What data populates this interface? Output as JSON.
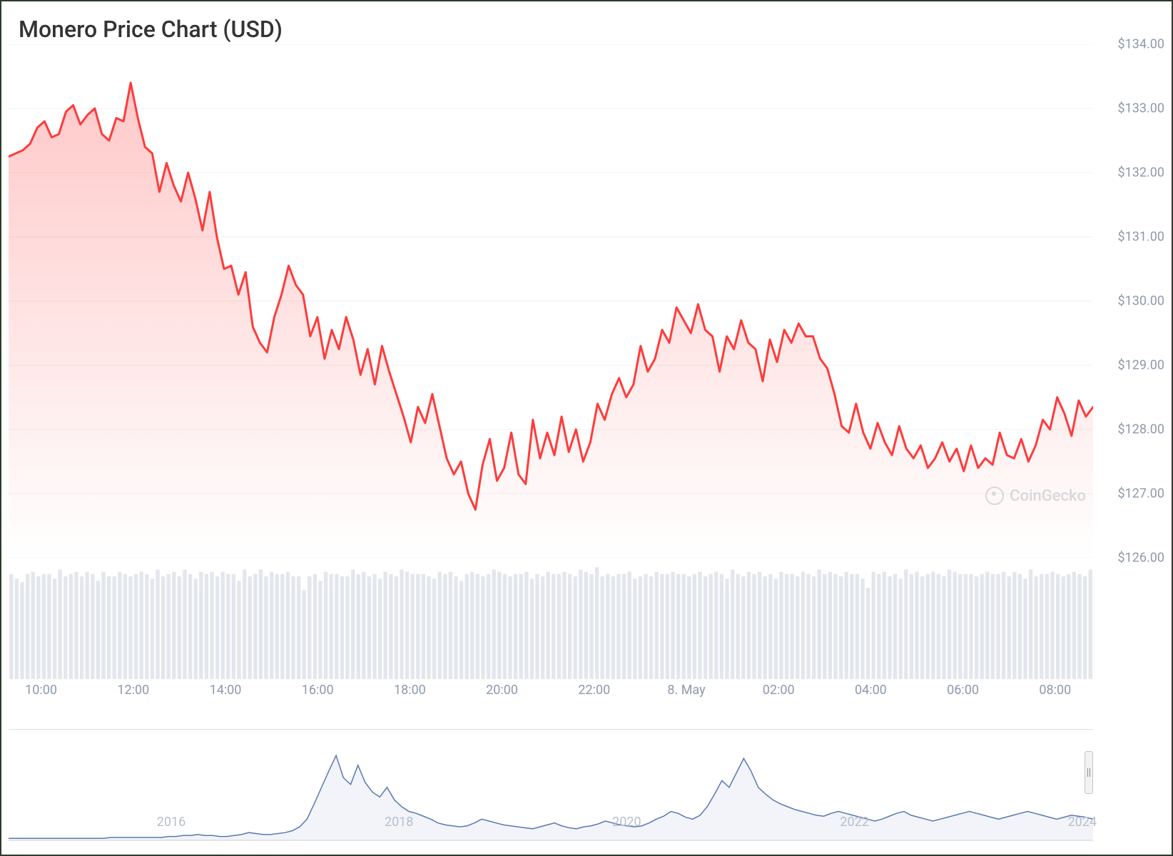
{
  "chart": {
    "title": "Monero Price Chart (USD)",
    "type": "area-line",
    "line_color": "#ff3b3b",
    "line_width": 3,
    "area_gradient_top": "rgba(255,59,59,0.28)",
    "area_gradient_bottom": "rgba(255,59,59,0.00)",
    "background_color": "#ffffff",
    "grid_color": "#f0f0f0",
    "y_axis": {
      "min": 126.0,
      "max": 134.0,
      "ticks": [
        126.0,
        127.0,
        128.0,
        129.0,
        130.0,
        131.0,
        132.0,
        133.0,
        134.0
      ],
      "label_format": "$%.2f",
      "label_color": "#8c99ad",
      "label_fontsize": 18
    },
    "x_axis": {
      "ticks": [
        {
          "pos": 0.03,
          "label": "10:00"
        },
        {
          "pos": 0.115,
          "label": "12:00"
        },
        {
          "pos": 0.2,
          "label": "14:00"
        },
        {
          "pos": 0.285,
          "label": "16:00"
        },
        {
          "pos": 0.37,
          "label": "18:00"
        },
        {
          "pos": 0.455,
          "label": "20:00"
        },
        {
          "pos": 0.54,
          "label": "22:00"
        },
        {
          "pos": 0.625,
          "label": "8. May"
        },
        {
          "pos": 0.71,
          "label": "02:00"
        },
        {
          "pos": 0.795,
          "label": "04:00"
        },
        {
          "pos": 0.88,
          "label": "06:00"
        },
        {
          "pos": 0.965,
          "label": "08:00"
        }
      ],
      "label_color": "#8c99ad",
      "label_fontsize": 18
    },
    "price_series": [
      132.25,
      132.3,
      132.35,
      132.45,
      132.7,
      132.8,
      132.55,
      132.6,
      132.95,
      133.05,
      132.75,
      132.9,
      133.0,
      132.6,
      132.5,
      132.85,
      132.8,
      133.4,
      132.85,
      132.4,
      132.3,
      131.7,
      132.15,
      131.8,
      131.55,
      132.0,
      131.6,
      131.1,
      131.7,
      131.0,
      130.5,
      130.55,
      130.1,
      130.45,
      129.6,
      129.35,
      129.2,
      129.75,
      130.1,
      130.55,
      130.25,
      130.1,
      129.45,
      129.75,
      129.1,
      129.55,
      129.25,
      129.75,
      129.4,
      128.85,
      129.25,
      128.7,
      129.3,
      128.9,
      128.55,
      128.2,
      127.8,
      128.35,
      128.1,
      128.55,
      128.05,
      127.55,
      127.3,
      127.5,
      127.0,
      126.75,
      127.45,
      127.85,
      127.2,
      127.4,
      127.95,
      127.3,
      127.15,
      128.15,
      127.55,
      127.95,
      127.6,
      128.2,
      127.65,
      128.0,
      127.5,
      127.8,
      128.4,
      128.15,
      128.55,
      128.8,
      128.5,
      128.7,
      129.3,
      128.9,
      129.1,
      129.55,
      129.35,
      129.9,
      129.7,
      129.5,
      129.95,
      129.55,
      129.45,
      128.9,
      129.45,
      129.25,
      129.7,
      129.35,
      129.25,
      128.75,
      129.4,
      129.05,
      129.55,
      129.35,
      129.65,
      129.45,
      129.45,
      129.1,
      128.95,
      128.55,
      128.05,
      127.95,
      128.4,
      127.95,
      127.7,
      128.1,
      127.8,
      127.6,
      128.05,
      127.7,
      127.55,
      127.75,
      127.4,
      127.55,
      127.8,
      127.5,
      127.7,
      127.35,
      127.75,
      127.4,
      127.55,
      127.45,
      127.95,
      127.6,
      127.55,
      127.85,
      127.5,
      127.75,
      128.15,
      128.0,
      128.5,
      128.25,
      127.9,
      128.45,
      128.2,
      128.35
    ],
    "watermark": "CoinGecko"
  },
  "volume": {
    "bar_color": "#e3e6ec",
    "count": 200,
    "heights_relative": [
      0.92,
      0.88,
      0.85,
      0.92,
      0.94,
      0.9,
      0.92,
      0.92,
      0.88,
      0.96,
      0.9,
      0.92,
      0.94,
      0.9,
      0.94,
      0.92,
      0.86,
      0.94,
      0.9,
      0.9,
      0.94,
      0.92,
      0.9,
      0.92,
      0.94,
      0.92,
      0.88,
      0.96,
      0.9,
      0.92,
      0.94,
      0.9,
      0.96,
      0.92,
      0.88,
      0.94,
      0.92,
      0.94,
      0.9,
      0.94,
      0.92,
      0.92,
      0.86,
      0.96,
      0.9,
      0.92,
      0.96,
      0.9,
      0.94,
      0.92,
      0.92,
      0.94,
      0.9,
      0.9,
      0.78,
      0.9,
      0.92,
      0.86,
      0.94,
      0.92,
      0.92,
      0.9,
      0.9,
      0.96,
      0.92,
      0.94,
      0.9,
      0.92,
      0.88,
      0.94,
      0.92,
      0.9,
      0.96,
      0.94,
      0.92,
      0.92,
      0.92,
      0.9,
      0.88,
      0.94,
      0.92,
      0.94,
      0.9,
      0.86,
      0.92,
      0.94,
      0.92,
      0.9,
      0.92,
      0.96,
      0.94,
      0.92,
      0.9,
      0.92,
      0.92,
      0.94,
      0.88,
      0.92,
      0.9,
      0.94,
      0.92,
      0.92,
      0.94,
      0.92,
      0.9,
      0.96,
      0.94,
      0.92,
      0.98,
      0.9,
      0.92,
      0.9,
      0.92,
      0.92,
      0.94,
      0.88,
      0.9,
      0.92,
      0.9,
      0.94,
      0.92,
      0.92,
      0.94,
      0.92,
      0.92,
      0.9,
      0.92,
      0.94,
      0.9,
      0.92,
      0.94,
      0.92,
      0.88,
      0.96,
      0.92,
      0.9,
      0.94,
      0.92,
      0.94,
      0.9,
      0.92,
      0.88,
      0.94,
      0.92,
      0.92,
      0.9,
      0.94,
      0.92,
      0.9,
      0.96,
      0.92,
      0.94,
      0.92,
      0.9,
      0.94,
      0.92,
      0.92,
      0.88,
      0.8,
      0.94,
      0.92,
      0.94,
      0.9,
      0.92,
      0.88,
      0.96,
      0.92,
      0.94,
      0.9,
      0.92,
      0.94,
      0.92,
      0.9,
      0.96,
      0.94,
      0.92,
      0.92,
      0.92,
      0.9,
      0.92,
      0.94,
      0.92,
      0.92,
      0.94,
      0.9,
      0.94,
      0.92,
      0.88,
      0.96,
      0.9,
      0.92,
      0.92,
      0.94,
      0.92,
      0.9,
      0.92,
      0.94,
      0.92,
      0.9,
      0.96
    ]
  },
  "navigator": {
    "line_color": "#5a78b0",
    "line_width": 1.5,
    "ticks": [
      {
        "pos": 0.15,
        "label": "2016"
      },
      {
        "pos": 0.36,
        "label": "2018"
      },
      {
        "pos": 0.57,
        "label": "2020"
      },
      {
        "pos": 0.78,
        "label": "2022"
      },
      {
        "pos": 0.99,
        "label": "2024"
      }
    ],
    "series": [
      2,
      2,
      2,
      2,
      2,
      2,
      2,
      2,
      2,
      2,
      2,
      2,
      2,
      2,
      3,
      3,
      3,
      3,
      3,
      3,
      3,
      3,
      4,
      4,
      5,
      5,
      6,
      5,
      5,
      4,
      4,
      5,
      6,
      8,
      7,
      6,
      6,
      7,
      8,
      10,
      14,
      22,
      38,
      55,
      72,
      88,
      65,
      58,
      78,
      60,
      50,
      45,
      55,
      42,
      35,
      30,
      28,
      25,
      22,
      18,
      16,
      15,
      14,
      15,
      18,
      22,
      20,
      18,
      16,
      15,
      14,
      13,
      12,
      14,
      16,
      18,
      15,
      13,
      12,
      14,
      15,
      17,
      20,
      18,
      16,
      15,
      14,
      15,
      18,
      22,
      25,
      30,
      28,
      24,
      22,
      26,
      35,
      48,
      62,
      55,
      70,
      85,
      72,
      55,
      48,
      42,
      38,
      35,
      32,
      30,
      28,
      26,
      25,
      28,
      30,
      28,
      26,
      24,
      22,
      20,
      22,
      25,
      28,
      30,
      26,
      24,
      22,
      20,
      22,
      24,
      26,
      28,
      30,
      28,
      26,
      24,
      22,
      24,
      26,
      28,
      30,
      28,
      26,
      24,
      22,
      24,
      26,
      25,
      24,
      22
    ],
    "y_max": 100
  }
}
